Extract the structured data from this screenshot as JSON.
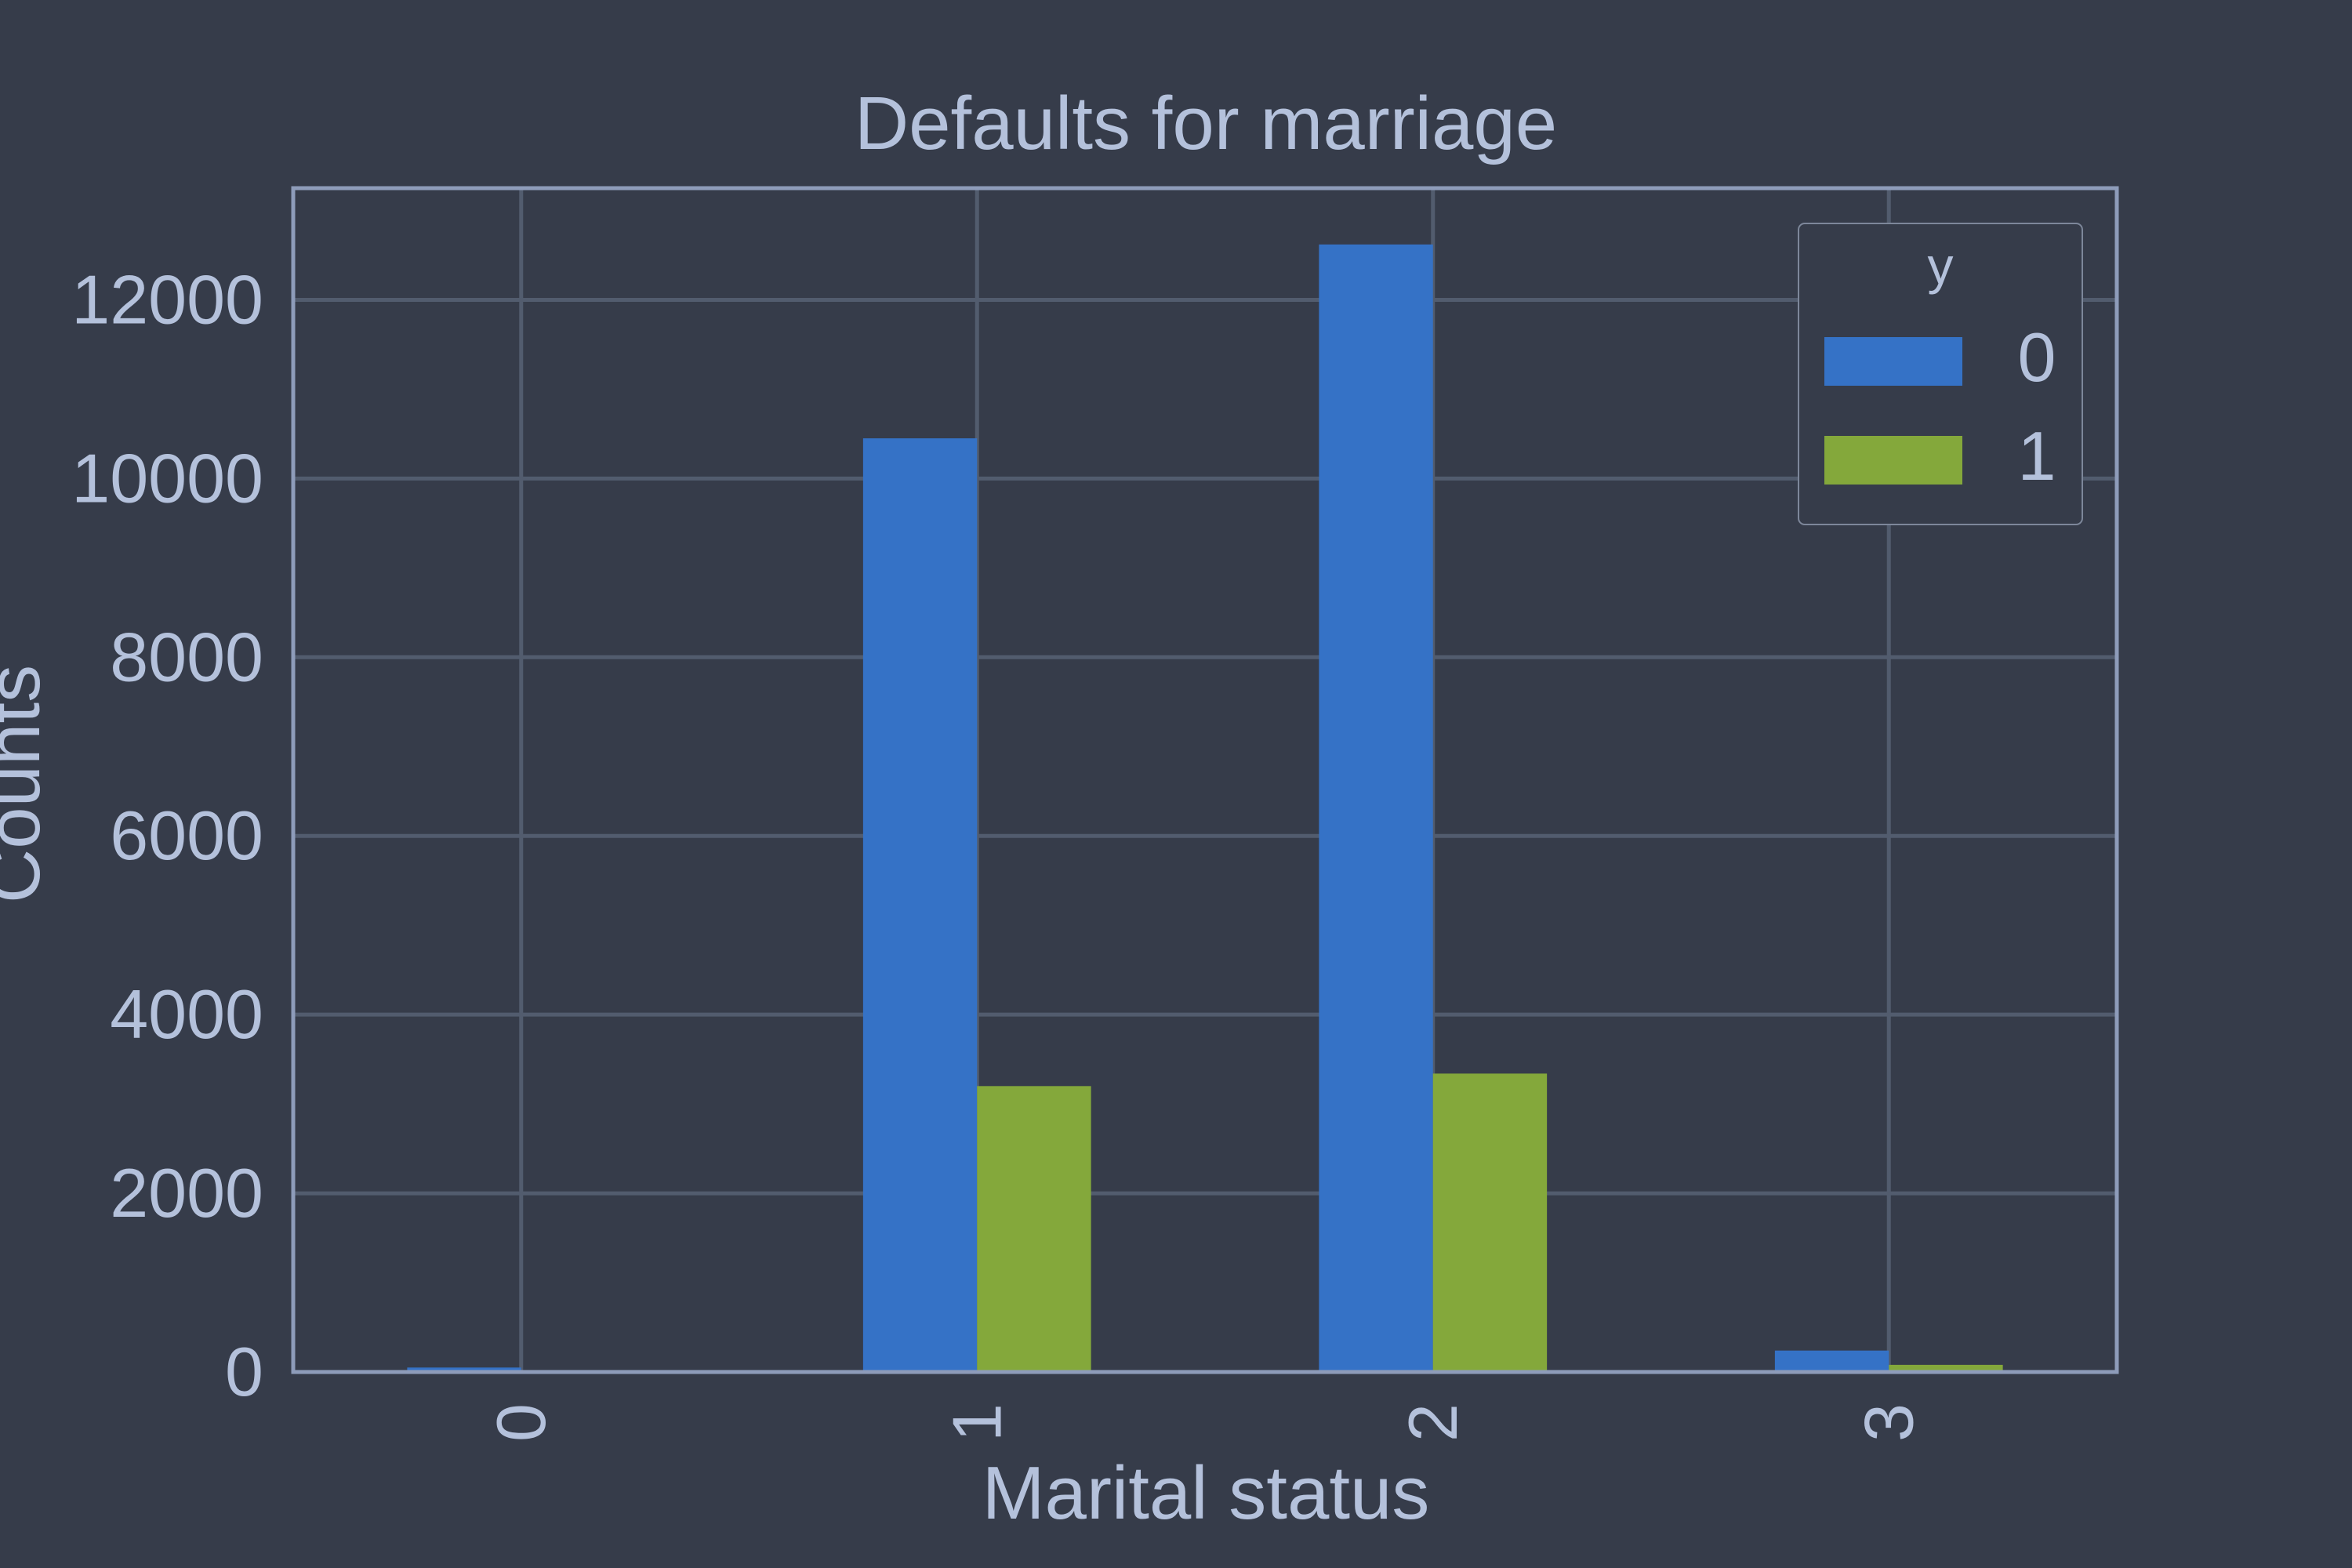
{
  "chart_data": {
    "type": "bar",
    "title": "Defaults for marriage",
    "xlabel": "Marital status",
    "ylabel": "Counts",
    "categories": [
      "0",
      "1",
      "2",
      "3"
    ],
    "series": [
      {
        "name": "0",
        "color": "#3572c6",
        "values": [
          50,
          10450,
          12620,
          240
        ]
      },
      {
        "name": "1",
        "color": "#84a83b",
        "values": [
          5,
          3200,
          3340,
          80
        ]
      }
    ],
    "ylim": [
      0,
      13250
    ],
    "yticks": [
      0,
      2000,
      4000,
      6000,
      8000,
      10000,
      12000
    ],
    "legend": {
      "title": "y",
      "position": "top-right"
    },
    "grid": true,
    "xtick_rotation": 90
  },
  "colors": {
    "background": "#363c4a",
    "grid": "#525c6e",
    "axes": "#8e9cba",
    "text": "#b4c1db"
  }
}
